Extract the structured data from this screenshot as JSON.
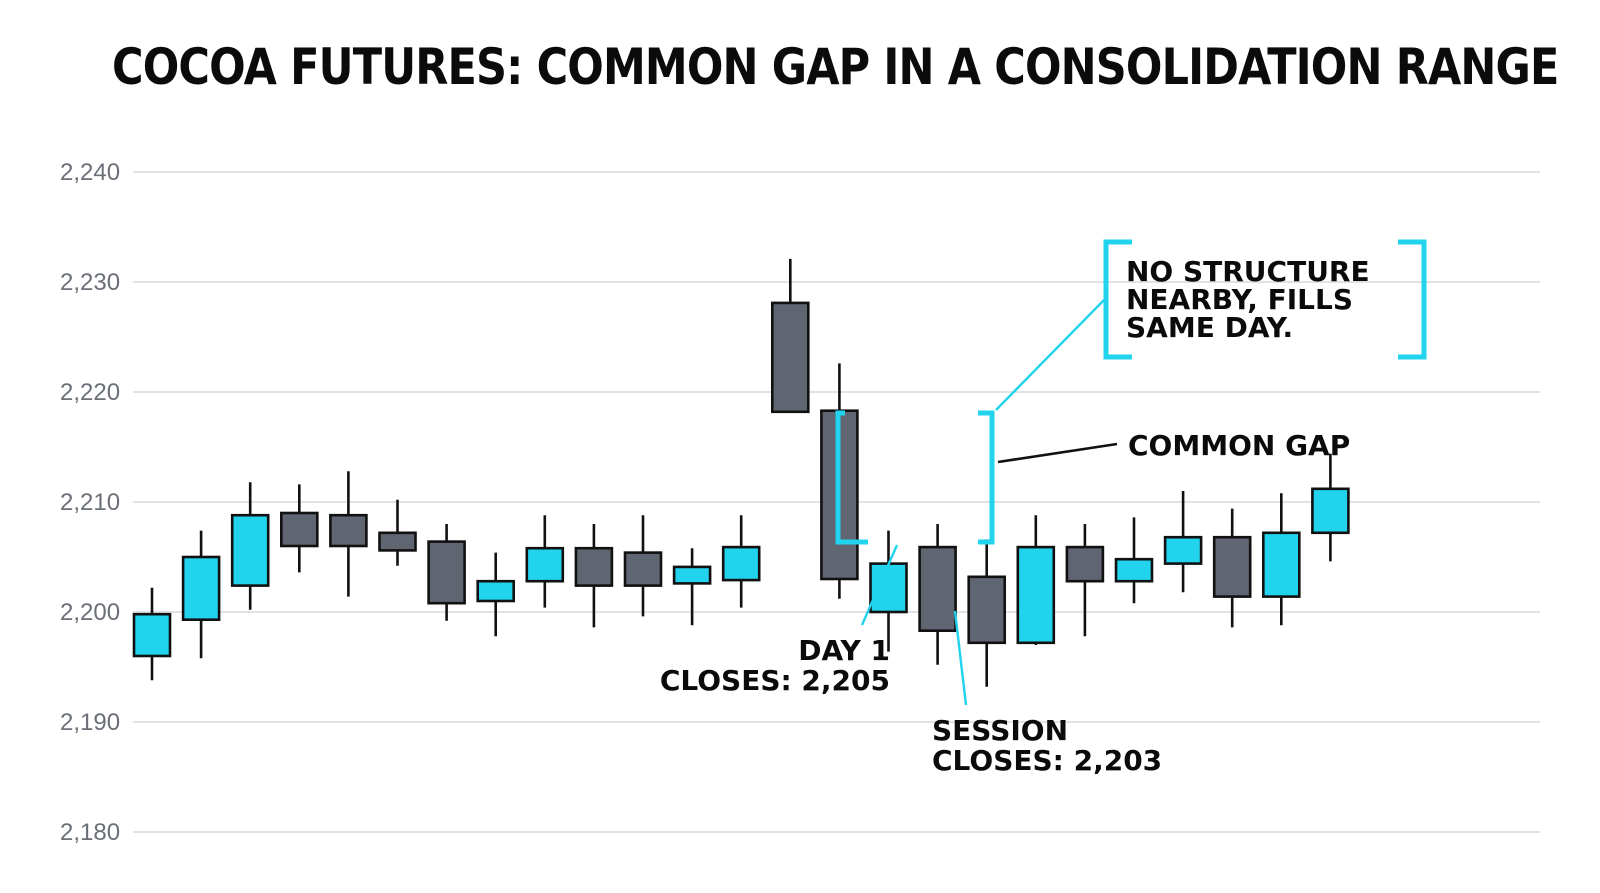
{
  "chart_data": {
    "type": "candlestick",
    "title": "COCOA FUTURES: COMMON GAP IN A CONSOLIDATION RANGE",
    "xlabel": "",
    "ylabel": "",
    "ylim": [
      2180,
      2240
    ],
    "yticks": [
      "2,180",
      "2,190",
      "2,200",
      "2,210",
      "2,220",
      "2,230",
      "2,240"
    ],
    "ytick_values": [
      2180,
      2190,
      2200,
      2210,
      2220,
      2230,
      2240
    ],
    "grid": true,
    "colors": {
      "up": "#22d3ee",
      "down": "#5f6571",
      "accent": "#22d3ee",
      "ink": "#111111",
      "grid": "#d6d8dc"
    },
    "candles": [
      {
        "open": 2196,
        "high": 2202.2,
        "low": 2193.8,
        "close": 2199.8
      },
      {
        "open": 2199.3,
        "high": 2207.4,
        "low": 2195.8,
        "close": 2205
      },
      {
        "open": 2202.4,
        "high": 2211.8,
        "low": 2200.2,
        "close": 2208.8
      },
      {
        "open": 2209,
        "high": 2211.6,
        "low": 2203.6,
        "close": 2206
      },
      {
        "open": 2208.8,
        "high": 2212.8,
        "low": 2201.4,
        "close": 2206
      },
      {
        "open": 2207.2,
        "high": 2210.2,
        "low": 2204.2,
        "close": 2205.6
      },
      {
        "open": 2206.4,
        "high": 2208,
        "low": 2199.2,
        "close": 2200.8
      },
      {
        "open": 2201,
        "high": 2205.4,
        "low": 2197.8,
        "close": 2202.8
      },
      {
        "open": 2202.8,
        "high": 2208.8,
        "low": 2200.4,
        "close": 2205.8
      },
      {
        "open": 2205.8,
        "high": 2208,
        "low": 2198.6,
        "close": 2202.4
      },
      {
        "open": 2205.4,
        "high": 2208.8,
        "low": 2199.6,
        "close": 2202.4
      },
      {
        "open": 2202.6,
        "high": 2205.8,
        "low": 2198.8,
        "close": 2204.1
      },
      {
        "open": 2202.9,
        "high": 2208.8,
        "low": 2200.4,
        "close": 2205.9
      },
      {
        "open": 2228.1,
        "high": 2232.1,
        "low": 2218.2,
        "close": 2218.2
      },
      {
        "open": 2218.3,
        "high": 2222.6,
        "low": 2201.2,
        "close": 2203
      },
      {
        "open": 2200,
        "high": 2207.4,
        "low": 2196.4,
        "close": 2204.4
      },
      {
        "open": 2205.9,
        "high": 2208,
        "low": 2195.2,
        "close": 2198.3
      },
      {
        "open": 2203.2,
        "high": 2206.6,
        "low": 2193.2,
        "close": 2197.2
      },
      {
        "open": 2197.2,
        "high": 2208.8,
        "low": 2197,
        "close": 2205.9
      },
      {
        "open": 2205.9,
        "high": 2208,
        "low": 2197.8,
        "close": 2202.8
      },
      {
        "open": 2202.8,
        "high": 2208.6,
        "low": 2200.8,
        "close": 2204.8
      },
      {
        "open": 2204.4,
        "high": 2211,
        "low": 2201.8,
        "close": 2206.8
      },
      {
        "open": 2206.8,
        "high": 2209.4,
        "low": 2198.6,
        "close": 2201.4
      },
      {
        "open": 2201.4,
        "high": 2210.8,
        "low": 2198.8,
        "close": 2207.2
      },
      {
        "open": 2207.2,
        "high": 2214.4,
        "low": 2204.6,
        "close": 2211.2
      }
    ],
    "annotations": {
      "gap_label": "COMMON GAP",
      "no_structure_line1": "NO STRUCTURE",
      "no_structure_line2": "NEARBY, FILLS",
      "no_structure_line3": "SAME DAY.",
      "day1_line1": "DAY 1",
      "day1_line2": "CLOSES: 2,205",
      "session_line1": "SESSION",
      "session_line2": "CLOSES: 2,203"
    }
  }
}
